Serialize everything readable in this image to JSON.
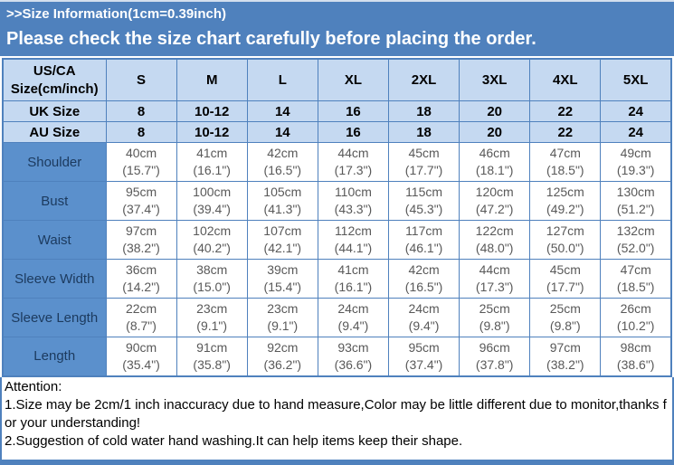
{
  "banner": {
    "title": ">>Size Information(1cm=0.39inch)",
    "subtitle": "Please check the size chart carefully before placing the order."
  },
  "size_table": {
    "corner_label": "US/CA Size(cm/inch)",
    "sizes": [
      "S",
      "M",
      "L",
      "XL",
      "2XL",
      "3XL",
      "4XL",
      "5XL"
    ],
    "region_rows": [
      {
        "label": "UK Size",
        "values": [
          "8",
          "10-12",
          "14",
          "16",
          "18",
          "20",
          "22",
          "24"
        ]
      },
      {
        "label": "AU Size",
        "values": [
          "8",
          "10-12",
          "14",
          "16",
          "18",
          "20",
          "22",
          "24"
        ]
      }
    ],
    "measurement_rows": [
      {
        "label": "Shoulder",
        "cm": [
          "40cm",
          "41cm",
          "42cm",
          "44cm",
          "45cm",
          "46cm",
          "47cm",
          "49cm"
        ],
        "inch": [
          "(15.7\")",
          "(16.1\")",
          "(16.5\")",
          "(17.3\")",
          "(17.7\")",
          "(18.1\")",
          "(18.5\")",
          "(19.3\")"
        ]
      },
      {
        "label": "Bust",
        "cm": [
          "95cm",
          "100cm",
          "105cm",
          "110cm",
          "115cm",
          "120cm",
          "125cm",
          "130cm"
        ],
        "inch": [
          "(37.4\")",
          "(39.4\")",
          "(41.3\")",
          "(43.3\")",
          "(45.3\")",
          "(47.2\")",
          "(49.2\")",
          "(51.2\")"
        ]
      },
      {
        "label": "Waist",
        "cm": [
          "97cm",
          "102cm",
          "107cm",
          "112cm",
          "117cm",
          "122cm",
          "127cm",
          "132cm"
        ],
        "inch": [
          "(38.2\")",
          "(40.2\")",
          "(42.1\")",
          "(44.1\")",
          "(46.1\")",
          "(48.0\")",
          "(50.0\")",
          "(52.0\")"
        ]
      },
      {
        "label": "Sleeve Width",
        "cm": [
          "36cm",
          "38cm",
          "39cm",
          "41cm",
          "42cm",
          "44cm",
          "45cm",
          "47cm"
        ],
        "inch": [
          "(14.2\")",
          "(15.0\")",
          "(15.4\")",
          "(16.1\")",
          "(16.5\")",
          "(17.3\")",
          "(17.7\")",
          "(18.5\")"
        ]
      },
      {
        "label": "Sleeve Length",
        "cm": [
          "22cm",
          "23cm",
          "23cm",
          "24cm",
          "24cm",
          "25cm",
          "25cm",
          "26cm"
        ],
        "inch": [
          "(8.7\")",
          "(9.1\")",
          "(9.1\")",
          "(9.4\")",
          "(9.4\")",
          "(9.8\")",
          "(9.8\")",
          "(10.2\")"
        ]
      },
      {
        "label": "Length",
        "cm": [
          "90cm",
          "91cm",
          "92cm",
          "93cm",
          "95cm",
          "96cm",
          "97cm",
          "98cm"
        ],
        "inch": [
          "(35.4\")",
          "(35.8\")",
          "(36.2\")",
          "(36.6\")",
          "(37.4\")",
          "(37.8\")",
          "(38.2\")",
          "(38.6\")"
        ]
      }
    ]
  },
  "attention": {
    "heading": "Attention:",
    "notes": [
      "1.Size may be 2cm/1 inch inaccuracy due to hand measure,Color may be little different due to monitor,thanks for your understanding!",
      "2.Suggestion of cold water hand washing.It can help items keep their shape."
    ]
  },
  "colors": {
    "banner_blue": "#4f81bd",
    "header_light_blue": "#c5d9f1",
    "row_label_blue": "#5b90cc",
    "border_blue": "#4f81bd",
    "data_text_gray": "#595959"
  }
}
